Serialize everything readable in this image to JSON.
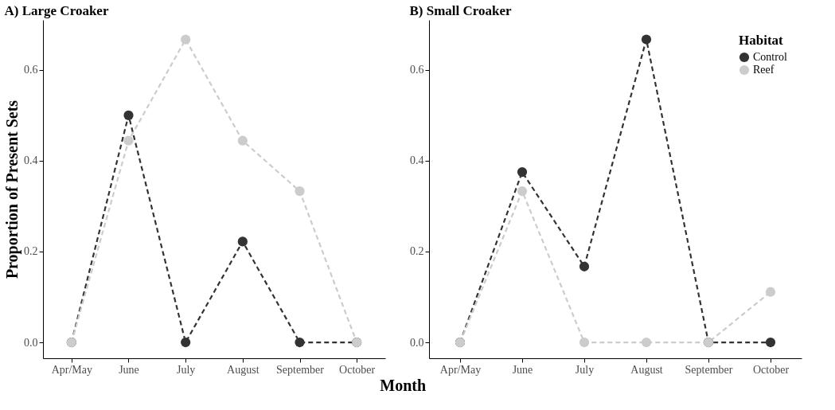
{
  "chart_data": [
    {
      "type": "line",
      "title": "A) Large Croaker",
      "xlabel": "Month",
      "ylabel": "Proportion of Present Sets",
      "categories": [
        "Apr/May",
        "June",
        "July",
        "August",
        "September",
        "October"
      ],
      "series": [
        {
          "color": "#333333",
          "values": [
            0,
            0.5,
            0,
            0.222,
            0,
            0
          ]
        },
        {
          "color": "#cccccc",
          "values": [
            0,
            0.444,
            0.667,
            0.444,
            0.333,
            0
          ]
        }
      ],
      "ylim": [
        -0.035,
        0.71
      ],
      "yticks": [
        {
          "value": 0,
          "label": "0.0"
        },
        {
          "value": 0.2,
          "label": "0.2"
        },
        {
          "value": 0.4,
          "label": "0.4"
        },
        {
          "value": 0.6,
          "label": "0.6"
        }
      ],
      "grid": false,
      "marker": "circle",
      "line_style": "dashed"
    },
    {
      "type": "line",
      "title": "B) Small Croaker",
      "legend_title": "Habitat",
      "categories": [
        "Apr/May",
        "June",
        "July",
        "August",
        "September",
        "October"
      ],
      "series": [
        {
          "name": "Control",
          "color": "#333333",
          "values": [
            0,
            0.375,
            0.167,
            0.667,
            0,
            0
          ]
        },
        {
          "name": "Reef",
          "color": "#cccccc",
          "values": [
            0,
            0.333,
            0,
            0,
            0,
            0.111
          ]
        }
      ],
      "ylim": [
        -0.035,
        0.71
      ],
      "yticks": [
        {
          "value": 0,
          "label": "0.0"
        },
        {
          "value": 0.2,
          "label": "0.2"
        },
        {
          "value": 0.4,
          "label": "0.4"
        },
        {
          "value": 0.6,
          "label": "0.6"
        }
      ],
      "grid": false,
      "legend": "top right",
      "marker": "circle",
      "line_style": "dashed"
    }
  ]
}
